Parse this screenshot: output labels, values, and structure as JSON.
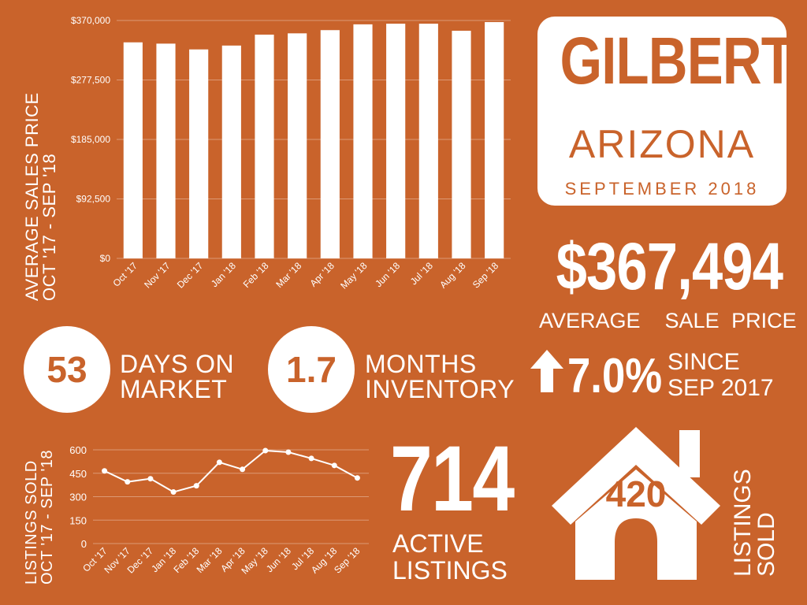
{
  "colors": {
    "background": "#c9632b",
    "foreground": "#ffffff"
  },
  "title": {
    "city": "GILBERT",
    "state": "ARIZONA",
    "period": "SEPTEMBER 2018"
  },
  "price": {
    "value": "$367,494",
    "caption": "AVERAGE  SALE PRICE"
  },
  "days_on_market": {
    "value": "53",
    "line1": "DAYS ON",
    "line2": "MARKET"
  },
  "inventory": {
    "value": "1.7",
    "line1": "MONTHS",
    "line2": "INVENTORY"
  },
  "growth": {
    "icon": "arrow-up-icon",
    "value": "7.0%",
    "line1": "SINCE",
    "line2": "SEP 2017"
  },
  "active": {
    "value": "714",
    "line1": "ACTIVE",
    "line2": "LISTINGS"
  },
  "sold": {
    "icon": "house-icon",
    "value": "420",
    "line1": "LISTINGS",
    "line2": "SOLD"
  },
  "chart_data": [
    {
      "type": "bar",
      "ylabel_line1": "AVERAGE SALES PRICE",
      "ylabel_line2": "OCT '17 - SEP '18",
      "categories": [
        "Oct '17",
        "Nov '17",
        "Dec '17",
        "Jan '18",
        "Feb '18",
        "Mar '18",
        "Apr '18",
        "May '18",
        "Jun '18",
        "Jul '18",
        "Aug '18",
        "Sep '18"
      ],
      "values": [
        336000,
        334000,
        325000,
        331000,
        348000,
        350000,
        355000,
        364000,
        365000,
        365000,
        354000,
        367494
      ],
      "ylim": [
        0,
        370000
      ],
      "yticks": [
        0,
        92500,
        185000,
        277500,
        370000
      ],
      "ytick_labels": [
        "$0",
        "$92,500",
        "$185,000",
        "$277,500",
        "$370,000"
      ],
      "grid": true
    },
    {
      "type": "line",
      "ylabel_line1": "LISTINGS SOLD",
      "ylabel_line2": "OCT '17 - SEP '18",
      "categories": [
        "Oct '17",
        "Nov '17",
        "Dec '17",
        "Jan '18",
        "Feb '18",
        "Mar '18",
        "Apr '18",
        "May '18",
        "Jun '18",
        "Jul '18",
        "Aug '18",
        "Sep '18"
      ],
      "values": [
        465,
        395,
        415,
        330,
        370,
        520,
        475,
        595,
        585,
        545,
        500,
        420
      ],
      "ylim": [
        0,
        600
      ],
      "yticks": [
        0,
        150,
        300,
        450,
        600
      ],
      "ytick_labels": [
        "0",
        "150",
        "300",
        "450",
        "600"
      ],
      "grid": true
    }
  ]
}
